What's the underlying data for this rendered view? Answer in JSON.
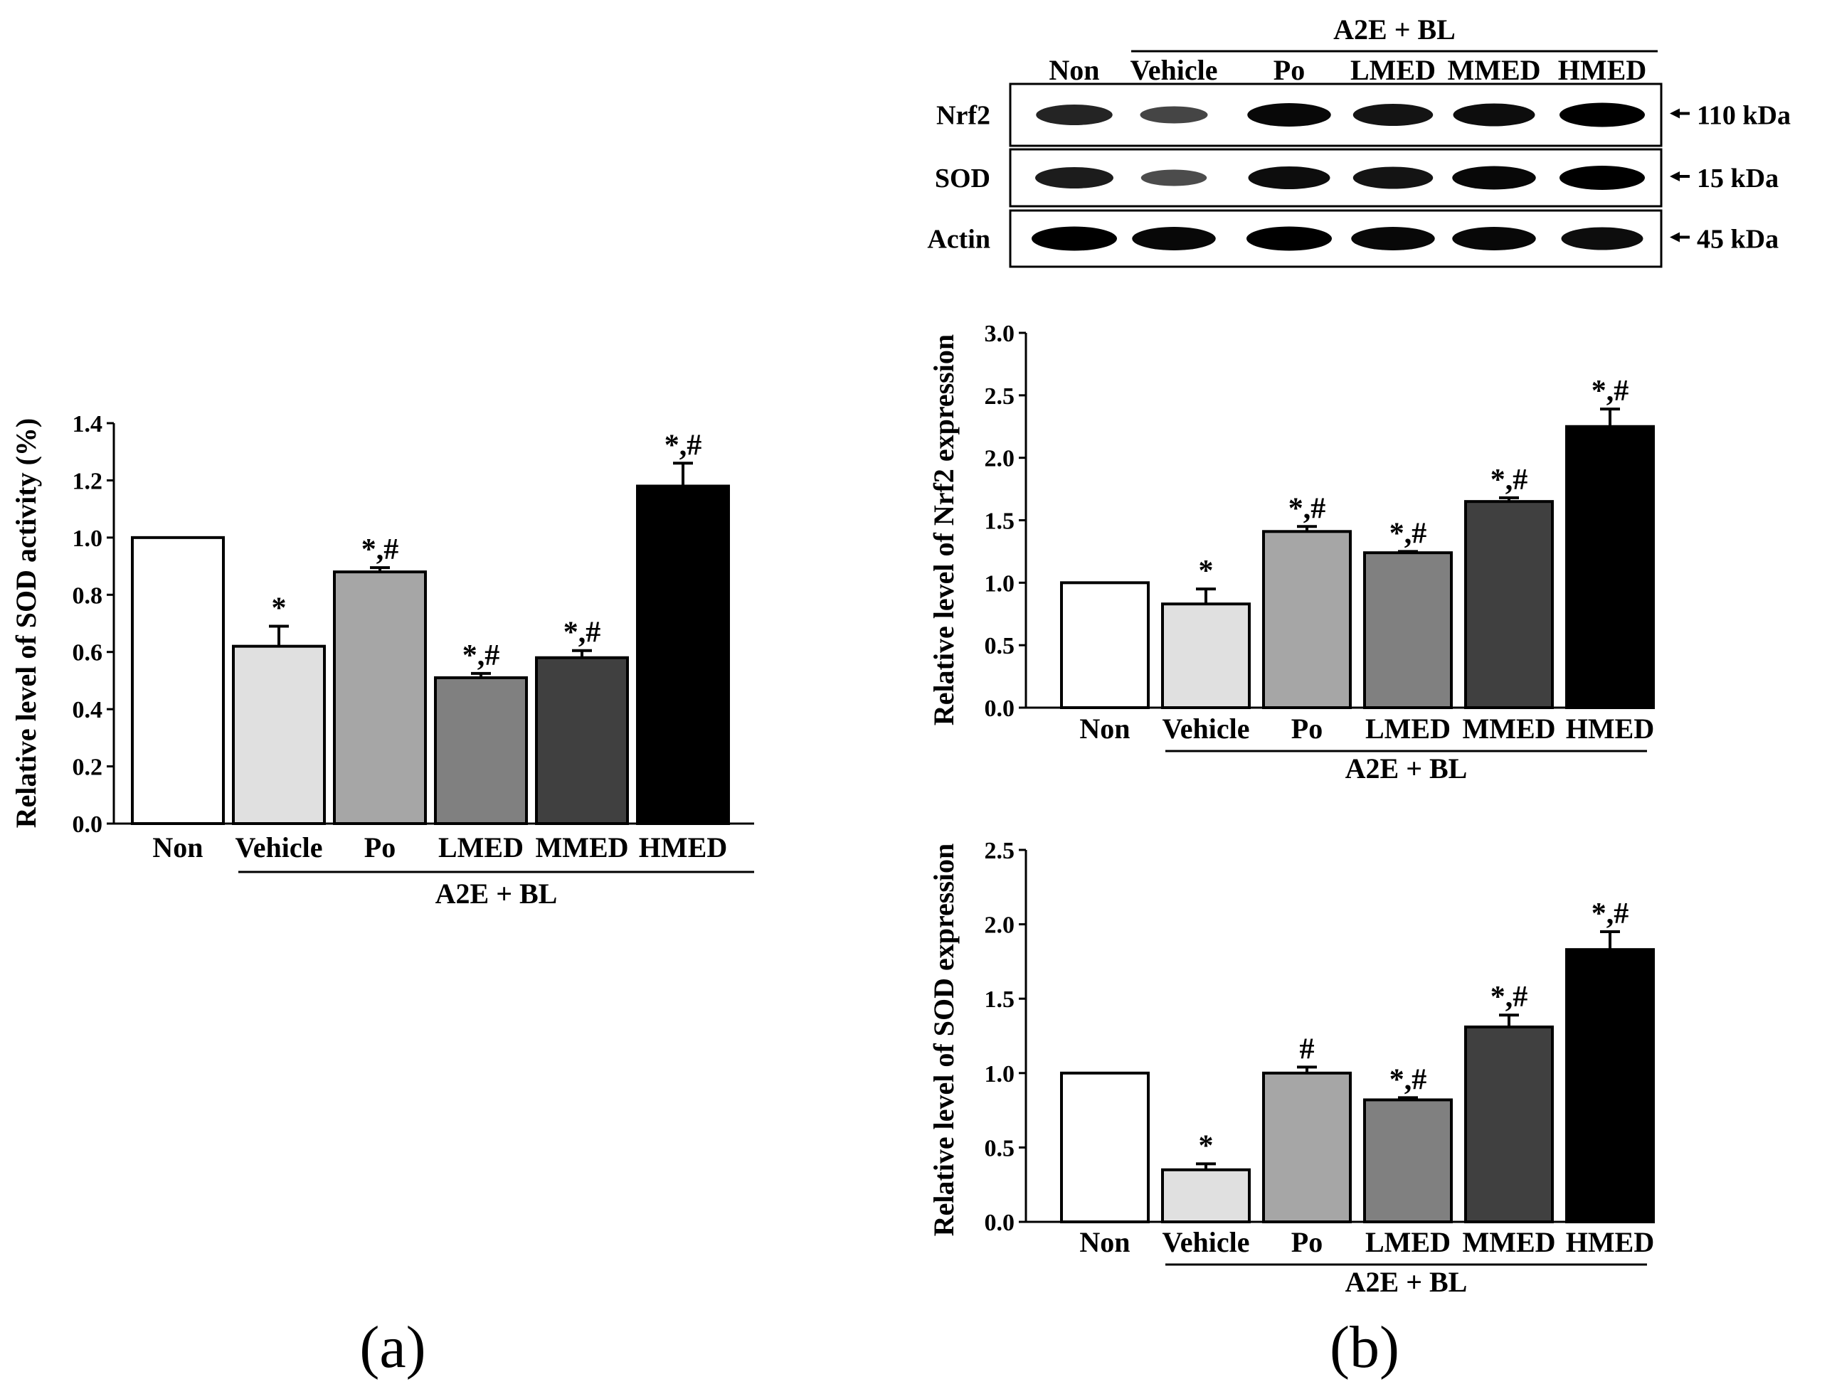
{
  "colors": {
    "Non": "#ffffff",
    "Vehicle": "#e0e0e0",
    "Po": "#a6a6a6",
    "LMED": "#808080",
    "MMED": "#404040",
    "HMED": "#000000"
  },
  "panel_labels": {
    "a": "(a)",
    "b": "(b)"
  },
  "blot": {
    "group_label": "A2E + BL",
    "lanes": [
      "Non",
      "Vehicle",
      "Po",
      "LMED",
      "MMED",
      "HMED"
    ],
    "rows": [
      {
        "protein": "Nrf2",
        "size": "110 kDa",
        "band_intensity": [
          0.75,
          0.5,
          0.95,
          0.85,
          0.9,
          1.0
        ]
      },
      {
        "protein": "SOD",
        "size": "15 kDa",
        "band_intensity": [
          0.8,
          0.45,
          0.9,
          0.85,
          0.95,
          1.0
        ]
      },
      {
        "protein": "Actin",
        "size": "45 kDa",
        "band_intensity": [
          1.0,
          0.95,
          1.0,
          0.95,
          0.95,
          0.9
        ]
      }
    ]
  },
  "chart_data": [
    {
      "id": "a",
      "type": "bar",
      "categories": [
        "Non",
        "Vehicle",
        "Po",
        "LMED",
        "MMED",
        "HMED"
      ],
      "values": [
        1.0,
        0.62,
        0.88,
        0.51,
        0.58,
        1.18
      ],
      "errors": [
        0,
        0.07,
        0.015,
        0.015,
        0.025,
        0.08
      ],
      "annotations": [
        "",
        "*",
        "*,#",
        "*,#",
        "*,#",
        "*,#"
      ],
      "ylabel": "Relative level of SOD activity (%)",
      "xlabel": "",
      "group_label": "A2E + BL",
      "ylim": [
        0,
        1.4
      ],
      "yticks": [
        "0.0",
        "0.2",
        "0.4",
        "0.6",
        "0.8",
        "1.0",
        "1.2",
        "1.4"
      ]
    },
    {
      "id": "b1",
      "type": "bar",
      "categories": [
        "Non",
        "Vehicle",
        "Po",
        "LMED",
        "MMED",
        "HMED"
      ],
      "values": [
        1.0,
        0.83,
        1.41,
        1.24,
        1.65,
        2.25
      ],
      "errors": [
        0,
        0.12,
        0.04,
        0.01,
        0.03,
        0.14
      ],
      "annotations": [
        "",
        "*",
        "*,#",
        "*,#",
        "*,#",
        "*,#"
      ],
      "ylabel": "Relative level of Nrf2 expression",
      "xlabel": "",
      "group_label": "A2E + BL",
      "ylim": [
        0,
        3.0
      ],
      "yticks": [
        "0.0",
        "0.5",
        "1.0",
        "1.5",
        "2.0",
        "2.5",
        "3.0"
      ]
    },
    {
      "id": "b2",
      "type": "bar",
      "categories": [
        "Non",
        "Vehicle",
        "Po",
        "LMED",
        "MMED",
        "HMED"
      ],
      "values": [
        1.0,
        0.35,
        1.0,
        0.82,
        1.31,
        1.83
      ],
      "errors": [
        0,
        0.04,
        0.04,
        0.015,
        0.08,
        0.12
      ],
      "annotations": [
        "",
        "*",
        "#",
        "*,#",
        "*,#",
        "*,#"
      ],
      "ylabel": "Relative level of SOD expression",
      "xlabel": "",
      "group_label": "A2E + BL",
      "ylim": [
        0,
        2.5
      ],
      "yticks": [
        "0.0",
        "0.5",
        "1.0",
        "1.5",
        "2.0",
        "2.5"
      ]
    }
  ]
}
